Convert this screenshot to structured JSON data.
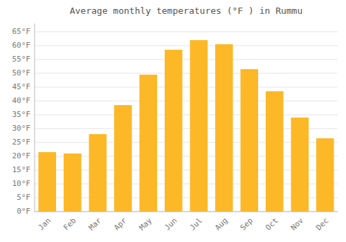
{
  "chart_data": {
    "type": "bar",
    "title": "Average monthly temperatures (°F ) in Rummu",
    "categories": [
      "Jan",
      "Feb",
      "Mar",
      "Apr",
      "May",
      "Jun",
      "Jul",
      "Aug",
      "Sep",
      "Oct",
      "Nov",
      "Dec"
    ],
    "values": [
      21.5,
      21.0,
      28.0,
      38.5,
      49.5,
      58.5,
      62.0,
      60.5,
      51.5,
      43.5,
      34.0,
      26.5
    ],
    "color": "#FDB827",
    "ylim": [
      0,
      68
    ],
    "yticks": [
      {
        "value": 0,
        "label": "0°F"
      },
      {
        "value": 5,
        "label": "5°F"
      },
      {
        "value": 10,
        "label": "10°F"
      },
      {
        "value": 15,
        "label": "15°F"
      },
      {
        "value": 20,
        "label": "20°F"
      },
      {
        "value": 25,
        "label": "25°F"
      },
      {
        "value": 30,
        "label": "30°F"
      },
      {
        "value": 35,
        "label": "35°F"
      },
      {
        "value": 40,
        "label": "40°F"
      },
      {
        "value": 45,
        "label": "45°F"
      },
      {
        "value": 50,
        "label": "50°F"
      },
      {
        "value": 55,
        "label": "55°F"
      },
      {
        "value": 60,
        "label": "60°F"
      },
      {
        "value": 65,
        "label": "65°F"
      }
    ],
    "grid": true
  }
}
